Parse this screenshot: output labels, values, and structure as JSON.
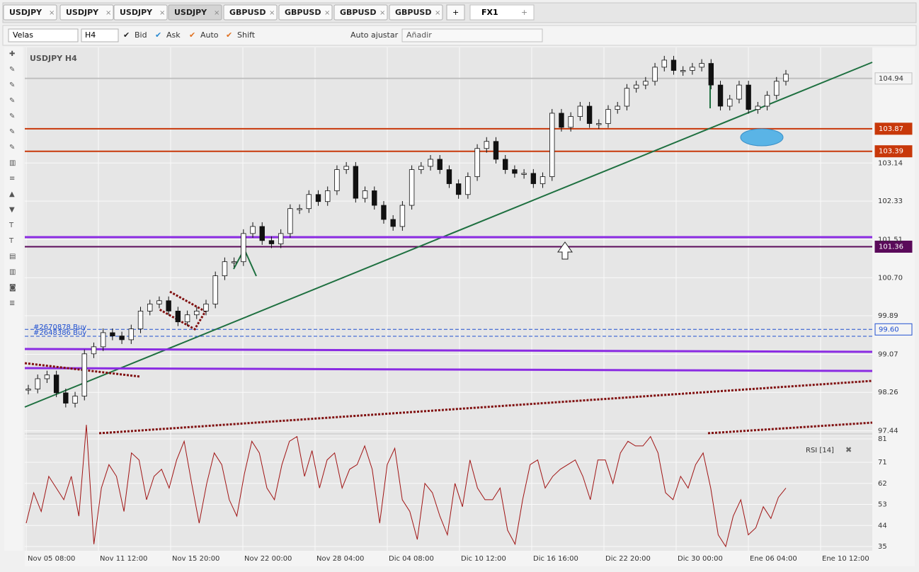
{
  "tabs": [
    "USDJPY",
    "USDJPY",
    "USDJPY",
    "USDJPY",
    "GBPUSD",
    "GBPUSD",
    "GBPUSD",
    "GBPUSD"
  ],
  "add_tab": "+",
  "workspace": "FX1",
  "add_workspace": "+",
  "toolbar": {
    "chart_type": "Velas",
    "timeframe": "H4",
    "options": [
      "Bid",
      "Ask",
      "Auto",
      "Shift"
    ],
    "auto_fit": "Auto ajustar",
    "add": "Añadir"
  },
  "chart_data": {
    "type": "candlestick",
    "title": "USDJPY H4",
    "closes": [
      98.33,
      98.55,
      98.63,
      98.25,
      98.03,
      98.18,
      99.08,
      99.23,
      99.53,
      99.46,
      99.38,
      99.61,
      99.99,
      100.14,
      100.21,
      99.99,
      99.76,
      99.91,
      99.99,
      100.14,
      100.74,
      101.04,
      101.04,
      101.64,
      101.79,
      101.49,
      101.42,
      101.64,
      102.17,
      102.17,
      102.47,
      102.32,
      102.55,
      103.0,
      103.07,
      102.39,
      102.55,
      102.24,
      101.94,
      101.79,
      102.24,
      103.0,
      103.07,
      103.22,
      103.0,
      102.7,
      102.47,
      102.85,
      103.45,
      103.6,
      103.22,
      103.0,
      102.92,
      102.92,
      102.7,
      102.85,
      104.2,
      103.9,
      104.13,
      104.35,
      103.98,
      103.98,
      104.28,
      104.35,
      104.73,
      104.8,
      104.88,
      105.18,
      105.33,
      105.11,
      105.11,
      105.18,
      105.26,
      104.8,
      104.35,
      104.5,
      104.8,
      104.28,
      104.35,
      104.58,
      104.88,
      105.03
    ],
    "ylim": [
      97.39,
      105.6
    ],
    "yticks": [
      97.44,
      98.26,
      99.07,
      99.89,
      {
        "value": 100.7,
        "label": "100.70"
      },
      101.51,
      102.33,
      103.14
    ],
    "x_labels": [
      "Nov 05 08:00",
      "Nov 11 12:00",
      "Nov 15 20:00",
      "Nov 22 00:00",
      "Nov 28 04:00",
      "Dic 04 08:00",
      "Dic 10 12:00",
      "Dic 16 16:00",
      "Dic 22 20:00",
      "Dic 30 00:00",
      "Ene 06 04:00",
      "Ene 10 12:00"
    ],
    "levels": [
      {
        "value": 104.94,
        "label": "104.94",
        "color": "#c0c0c0"
      },
      {
        "value": 103.87,
        "label": "103.87",
        "color": "#c8380a"
      },
      {
        "value": 103.39,
        "label": "103.39",
        "color": "#c8380a"
      },
      {
        "value": 101.36,
        "label": "101.36",
        "color": "#5a0a5a"
      },
      {
        "value": 99.6,
        "label": "99.60",
        "color": "#2050d0"
      }
    ],
    "orders": [
      "#2670878 Buy",
      "#2648386 Buy"
    ],
    "indicator": {
      "type": "line",
      "name": "RSI [14]",
      "color": "#a01414",
      "ylim": [
        33.2,
        82.5
      ],
      "yticks": [
        81,
        71,
        62,
        53,
        44,
        35
      ],
      "values": [
        45,
        58,
        50,
        65,
        60,
        55,
        65,
        48,
        87,
        36,
        60,
        70,
        65,
        50,
        75,
        72,
        55,
        65,
        68,
        60,
        72,
        80,
        62,
        45,
        62,
        75,
        70,
        55,
        48,
        66,
        80,
        75,
        60,
        55,
        70,
        80,
        82,
        65,
        76,
        60,
        72,
        75,
        60,
        68,
        70,
        78,
        68,
        45,
        70,
        77,
        55,
        50,
        38,
        62,
        58,
        48,
        40,
        62,
        52,
        72,
        60,
        55,
        55,
        60,
        42,
        36,
        55,
        70,
        72,
        60,
        65,
        68,
        70,
        72,
        65,
        55,
        72,
        72,
        62,
        75,
        80,
        78,
        78,
        82,
        75,
        58,
        55,
        65,
        60,
        70,
        75,
        60,
        40,
        35,
        48,
        55,
        40,
        43,
        52,
        47,
        56,
        60
      ]
    }
  }
}
